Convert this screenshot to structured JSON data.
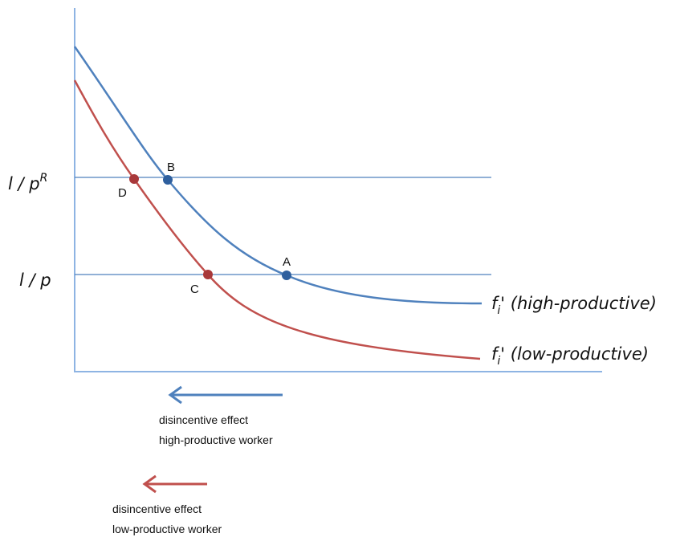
{
  "y_labels": [
    {
      "base": "l / p",
      "sup": "R"
    },
    {
      "base": "l / p"
    }
  ],
  "points": [
    "A",
    "B",
    "C",
    "D"
  ],
  "curves": [
    {
      "base": "f",
      "sub": "i",
      "rest": "' (high-productive)"
    },
    {
      "base": "f",
      "sub": "i",
      "rest": "' (low-productive)"
    }
  ],
  "arrows": [
    {
      "lines": [
        "disincentive effect",
        "high-productive worker"
      ]
    },
    {
      "lines": [
        "disincentive effect",
        "low-productive worker"
      ]
    }
  ]
}
